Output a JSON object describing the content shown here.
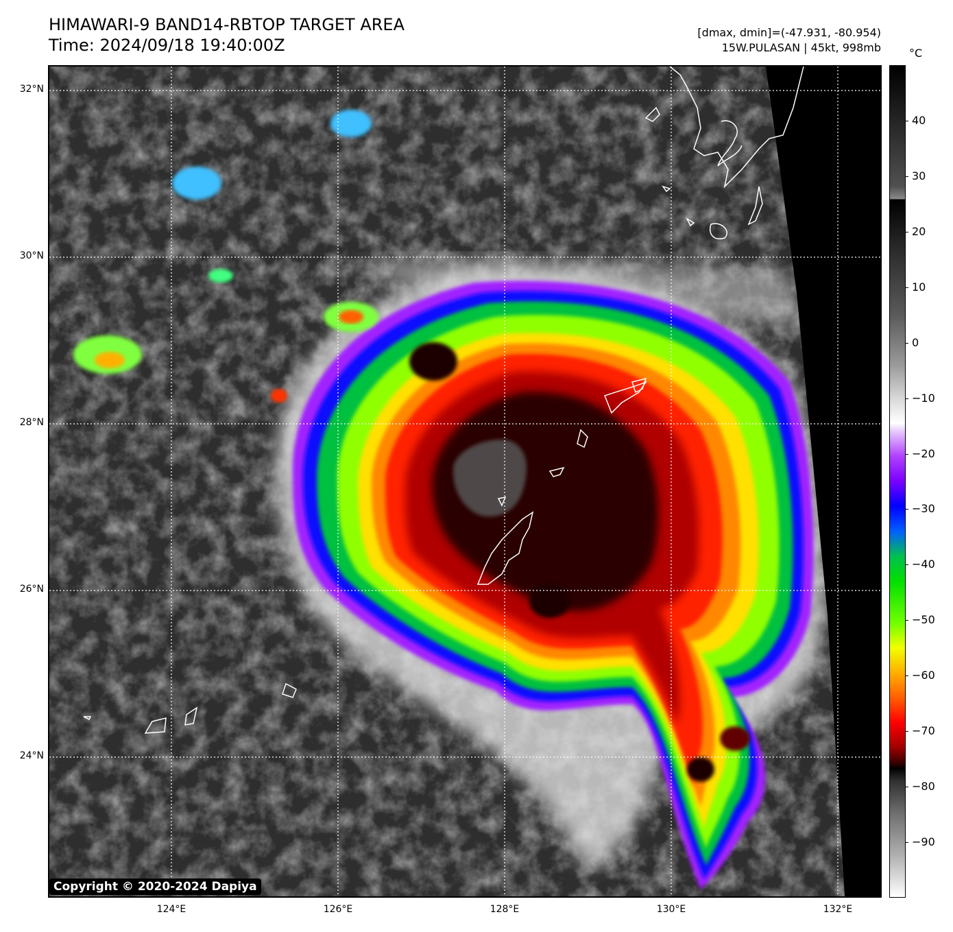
{
  "title": {
    "line1": "HIMAWARI-9 BAND14-RBTOP TARGET AREA",
    "line2": "Time: 2024/09/18 19:40:00Z"
  },
  "info": {
    "line1": "[dmax, dmin]=(-47.931, -80.954)",
    "line2": "15W.PULASAN | 45kt, 998mb"
  },
  "axes": {
    "lat_labels": [
      "32°N",
      "30°N",
      "28°N",
      "26°N",
      "24°N"
    ],
    "lat_values": [
      32,
      30,
      28,
      26,
      24
    ],
    "lon_labels": [
      "124°E",
      "126°E",
      "128°E",
      "130°E",
      "132°E"
    ],
    "lon_values": [
      124,
      126,
      128,
      130,
      132
    ],
    "lat_range": [
      22.3,
      32.3
    ],
    "lon_range": [
      122.5,
      132.5
    ]
  },
  "colorbar": {
    "unit": "°C",
    "labels": [
      "40",
      "30",
      "20",
      "10",
      "0",
      "−10",
      "−20",
      "−30",
      "−40",
      "−50",
      "−60",
      "−70",
      "−80",
      "−90"
    ],
    "values": [
      40,
      30,
      20,
      10,
      0,
      -10,
      -20,
      -30,
      -40,
      -50,
      -60,
      -70,
      -80,
      -90
    ],
    "range": [
      -100,
      50
    ]
  },
  "copyright": "Copyright © 2020-2024 Dapiya",
  "colors": {
    "background": "#2a2a2a",
    "coastline": "#ffffff",
    "gridline": "#ffffff"
  }
}
